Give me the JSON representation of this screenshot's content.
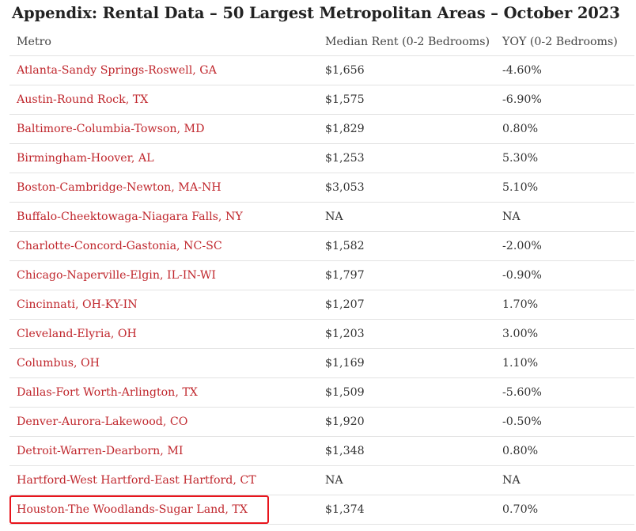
{
  "title": "Appendix: Rental Data – 50 Largest Metropolitan Areas – October 2023",
  "table": {
    "headers": {
      "metro": "Metro",
      "median_rent": "Median Rent (0-2 Bedrooms)",
      "yoy": "YOY (0-2 Bedrooms)"
    },
    "rows": [
      {
        "metro": "Atlanta-Sandy Springs-Roswell, GA",
        "rent": "$1,656",
        "yoy": "-4.60%"
      },
      {
        "metro": "Austin-Round Rock, TX",
        "rent": "$1,575",
        "yoy": "-6.90%"
      },
      {
        "metro": "Baltimore-Columbia-Towson, MD",
        "rent": "$1,829",
        "yoy": "0.80%"
      },
      {
        "metro": "Birmingham-Hoover, AL",
        "rent": "$1,253",
        "yoy": "5.30%"
      },
      {
        "metro": "Boston-Cambridge-Newton, MA-NH",
        "rent": "$3,053",
        "yoy": "5.10%"
      },
      {
        "metro": "Buffalo-Cheektowaga-Niagara Falls, NY",
        "rent": "NA",
        "yoy": "NA"
      },
      {
        "metro": "Charlotte-Concord-Gastonia, NC-SC",
        "rent": "$1,582",
        "yoy": "-2.00%"
      },
      {
        "metro": "Chicago-Naperville-Elgin, IL-IN-WI",
        "rent": "$1,797",
        "yoy": "-0.90%"
      },
      {
        "metro": "Cincinnati, OH-KY-IN",
        "rent": "$1,207",
        "yoy": "1.70%"
      },
      {
        "metro": "Cleveland-Elyria, OH",
        "rent": "$1,203",
        "yoy": "3.00%"
      },
      {
        "metro": "Columbus, OH",
        "rent": "$1,169",
        "yoy": "1.10%"
      },
      {
        "metro": "Dallas-Fort Worth-Arlington, TX",
        "rent": "$1,509",
        "yoy": "-5.60%"
      },
      {
        "metro": "Denver-Aurora-Lakewood, CO",
        "rent": "$1,920",
        "yoy": "-0.50%"
      },
      {
        "metro": "Detroit-Warren-Dearborn, MI",
        "rent": "$1,348",
        "yoy": "0.80%"
      },
      {
        "metro": "Hartford-West Hartford-East Hartford, CT",
        "rent": "NA",
        "yoy": "NA"
      },
      {
        "metro": "Houston-The Woodlands-Sugar Land, TX",
        "rent": "$1,374",
        "yoy": "0.70%"
      }
    ]
  },
  "colors": {
    "link": "#c0272d",
    "highlight_border": "#e8141c",
    "row_divider": "#e3e3e3"
  }
}
